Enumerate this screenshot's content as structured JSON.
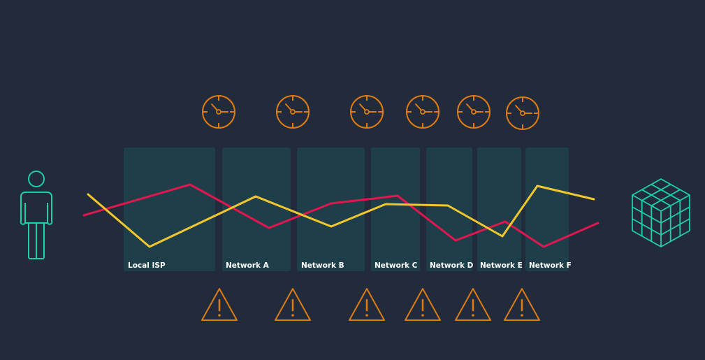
{
  "diagram": {
    "networks": [
      {
        "label": "Local ISP"
      },
      {
        "label": "Network A"
      },
      {
        "label": "Network B"
      },
      {
        "label": "Network C"
      },
      {
        "label": "Network D"
      },
      {
        "label": "Network E"
      },
      {
        "label": "Network F"
      }
    ],
    "icons": {
      "user": "user-icon",
      "destination": "cube-icon",
      "latency": "clock-icon",
      "warning": "warning-icon"
    },
    "colors": {
      "background": "#222b3c",
      "panel": "#1e3f4a",
      "line_red": "#e0174f",
      "line_yellow": "#f2c62c",
      "icon_orange": "#e07b0f",
      "icon_teal": "#1dd0a8"
    }
  }
}
